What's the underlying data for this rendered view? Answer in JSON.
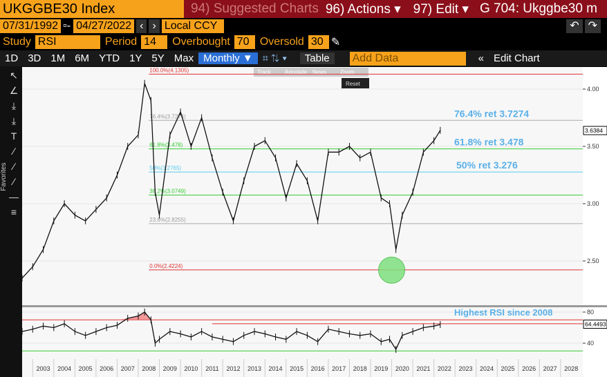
{
  "header": {
    "title": "UKGGBE30 Index",
    "menu": [
      "94) Suggested Charts",
      "96) Actions ▾",
      "97) Edit ▾"
    ],
    "chart_id": "G 704: Ukggbe30 m"
  },
  "controls": {
    "start_date": "07/31/1992",
    "end_date": "04/27/2022",
    "currency": "Local CCY",
    "study_label": "Study",
    "study": "RSI",
    "period_label": "Period",
    "period": "14",
    "overbought_label": "Overbought",
    "overbought": "70",
    "oversold_label": "Oversold",
    "oversold": "30"
  },
  "tabs": [
    "1D",
    "3D",
    "1M",
    "6M",
    "YTD",
    "1Y",
    "5Y",
    "Max"
  ],
  "frequency": "Monthly ▼",
  "table_button": "Table",
  "add_data": "Add Data",
  "edit_chart": "Edit Chart",
  "sidebar_label": "Favorites",
  "popup": [
    "Track",
    "Annotate",
    "News",
    "Zoom",
    "Reset"
  ],
  "chart_data": [
    {
      "type": "line",
      "name": "price",
      "color": "#111111",
      "x": [
        2002.5,
        2003.0,
        2003.5,
        2004.0,
        2004.5,
        2005.0,
        2005.5,
        2006.0,
        2006.5,
        2007.0,
        2007.5,
        2008.0,
        2008.3,
        2008.6,
        2008.8,
        2009.0,
        2009.5,
        2010.0,
        2010.5,
        2011.0,
        2011.5,
        2012.0,
        2012.5,
        2013.0,
        2013.5,
        2014.0,
        2014.5,
        2015.0,
        2015.5,
        2016.0,
        2016.5,
        2017.0,
        2017.5,
        2018.0,
        2018.5,
        2019.0,
        2019.5,
        2019.9,
        2020.2,
        2020.5,
        2021.0,
        2021.5,
        2022.0,
        2022.3
      ],
      "values": [
        2.35,
        2.45,
        2.6,
        2.85,
        3.0,
        2.9,
        2.85,
        2.95,
        3.05,
        3.25,
        3.5,
        3.6,
        4.05,
        3.9,
        3.1,
        2.9,
        3.6,
        3.8,
        3.5,
        3.75,
        3.4,
        3.1,
        2.85,
        3.2,
        3.5,
        3.55,
        3.4,
        3.05,
        3.35,
        3.2,
        2.85,
        3.45,
        3.45,
        3.5,
        3.4,
        3.45,
        3.05,
        3.0,
        2.6,
        2.9,
        3.1,
        3.45,
        3.55,
        3.64
      ],
      "xlim": [
        2002.5,
        2029.05
      ],
      "ylim": [
        2.114,
        4.193
      ],
      "yticks": [
        {
          "value": 2.5,
          "label": "2.50"
        },
        {
          "value": 3,
          "label": "3.00"
        },
        {
          "value": 3.5,
          "label": "3.50"
        },
        {
          "value": 4,
          "label": "4.00"
        }
      ],
      "levels": [
        {
          "label": "100.0%(4.1305)",
          "value": 4.1305,
          "x0": 2008.5,
          "color": "#e03030"
        },
        {
          "label": "76.4%(3.7274)",
          "value": 3.7274,
          "x0": 2008.5,
          "color": "#aaaaaa"
        },
        {
          "label": "61.8%(3.478)",
          "value": 3.478,
          "x0": 2008.5,
          "color": "#33cc33"
        },
        {
          "label": "50%(3.2765)",
          "value": 3.2765,
          "x0": 2008.5,
          "color": "#55ccee"
        },
        {
          "label": "38.2%(3.0749)",
          "value": 3.0749,
          "x0": 2008.5,
          "color": "#33cc33"
        },
        {
          "label": "23.6%(2.8255)",
          "value": 2.8255,
          "x0": 2008.5,
          "color": "#aaaaaa"
        },
        {
          "label": "0.0%(2.4224)",
          "value": 2.4224,
          "x0": 2008.5,
          "color": "#e03030"
        }
      ],
      "annotations": [
        {
          "text": "76.4% ret 3.7274",
          "value": 3.7274
        },
        {
          "text": "61.8% ret 3.478",
          "value": 3.478
        },
        {
          "text": "50% ret 3.276",
          "value": 3.276
        }
      ],
      "last_value": {
        "value": 3.6384,
        "label": "3.6384"
      },
      "highlight": {
        "x": 2020.0,
        "value": 2.42
      }
    },
    {
      "type": "line",
      "name": "rsi",
      "color": "#111111",
      "x": [
        2002.5,
        2003.0,
        2003.5,
        2004.0,
        2004.5,
        2005.0,
        2005.5,
        2006.0,
        2006.5,
        2007.0,
        2007.5,
        2008.0,
        2008.3,
        2008.6,
        2008.8,
        2009.0,
        2009.5,
        2010.0,
        2010.5,
        2011.0,
        2011.5,
        2012.0,
        2012.5,
        2013.0,
        2013.5,
        2014.0,
        2014.5,
        2015.0,
        2015.5,
        2016.0,
        2016.5,
        2017.0,
        2017.5,
        2018.0,
        2018.5,
        2019.0,
        2019.5,
        2019.9,
        2020.2,
        2020.5,
        2021.0,
        2021.5,
        2022.0,
        2022.3
      ],
      "values": [
        55,
        58,
        62,
        60,
        65,
        55,
        50,
        55,
        60,
        63,
        72,
        75,
        80,
        70,
        40,
        45,
        55,
        52,
        48,
        55,
        48,
        45,
        42,
        50,
        55,
        52,
        48,
        45,
        55,
        50,
        42,
        58,
        55,
        52,
        50,
        52,
        42,
        45,
        32,
        50,
        55,
        60,
        62,
        64
      ],
      "xlim": [
        2002.5,
        2029.05
      ],
      "ylim": [
        19.6,
        86.2
      ],
      "yticks": [
        40,
        80
      ],
      "levels": [
        {
          "value": 70,
          "x0": 2002.5,
          "color": "#e03030"
        },
        {
          "value": 30,
          "x0": 2002.5,
          "color": "#33cc33"
        },
        {
          "value": 65,
          "x0": 2011.5,
          "color": "#e03030"
        }
      ],
      "annotations": [
        {
          "text": "Highest RSI since 2008",
          "value": 80
        }
      ],
      "last_value": {
        "value": 64.4493,
        "label": "64.4493"
      },
      "xticks": [
        {
          "value": 2003.5,
          "label": "2003"
        },
        {
          "value": 2004.5,
          "label": "2004"
        },
        {
          "value": 2005.5,
          "label": "2005"
        },
        {
          "value": 2006.5,
          "label": "2006"
        },
        {
          "value": 2007.5,
          "label": "2007"
        },
        {
          "value": 2008.5,
          "label": "2008"
        },
        {
          "value": 2009.5,
          "label": "2009"
        },
        {
          "value": 2010.5,
          "label": "2010"
        },
        {
          "value": 2011.5,
          "label": "2011"
        },
        {
          "value": 2012.5,
          "label": "2012"
        },
        {
          "value": 2013.5,
          "label": "2013"
        },
        {
          "value": 2014.5,
          "label": "2014"
        },
        {
          "value": 2015.5,
          "label": "2015"
        },
        {
          "value": 2016.5,
          "label": "2016"
        },
        {
          "value": 2017.5,
          "label": "2017"
        },
        {
          "value": 2018.5,
          "label": "2018"
        },
        {
          "value": 2019.5,
          "label": "2019"
        },
        {
          "value": 2020.5,
          "label": "2020"
        },
        {
          "value": 2021.5,
          "label": "2021"
        },
        {
          "value": 2022.5,
          "label": "2022"
        },
        {
          "value": 2023.5,
          "label": "2023"
        },
        {
          "value": 2024.5,
          "label": "2024"
        },
        {
          "value": 2025.5,
          "label": "2025"
        },
        {
          "value": 2026.5,
          "label": "2026"
        },
        {
          "value": 2027.5,
          "label": "2027"
        },
        {
          "value": 2028.5,
          "label": "2028"
        }
      ]
    }
  ]
}
